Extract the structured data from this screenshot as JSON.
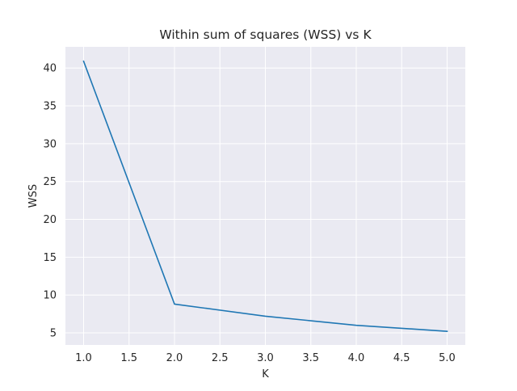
{
  "chart_data": {
    "type": "line",
    "title": "Within sum of squares (WSS) vs K",
    "xlabel": "K",
    "ylabel": "WSS",
    "x": [
      1,
      2,
      3,
      4,
      5
    ],
    "series": [
      {
        "values": [
          40.9,
          8.8,
          7.2,
          6.0,
          5.2
        ],
        "color": "#1f77b4"
      }
    ],
    "xlim": [
      0.8,
      5.2
    ],
    "ylim": [
      3.4,
      42.8
    ],
    "xticks": [
      1.0,
      1.5,
      2.0,
      2.5,
      3.0,
      3.5,
      4.0,
      4.5,
      5.0
    ],
    "xtick_labels": [
      "1.0",
      "1.5",
      "2.0",
      "2.5",
      "3.0",
      "3.5",
      "4.0",
      "4.5",
      "5.0"
    ],
    "yticks": [
      5,
      10,
      15,
      20,
      25,
      30,
      35,
      40
    ],
    "ytick_labels": [
      "5",
      "10",
      "15",
      "20",
      "25",
      "30",
      "35",
      "40"
    ],
    "grid": true,
    "style": {
      "background": "#eaeaf2",
      "grid_color": "#ffffff",
      "line_color": "#1f77b4"
    }
  }
}
